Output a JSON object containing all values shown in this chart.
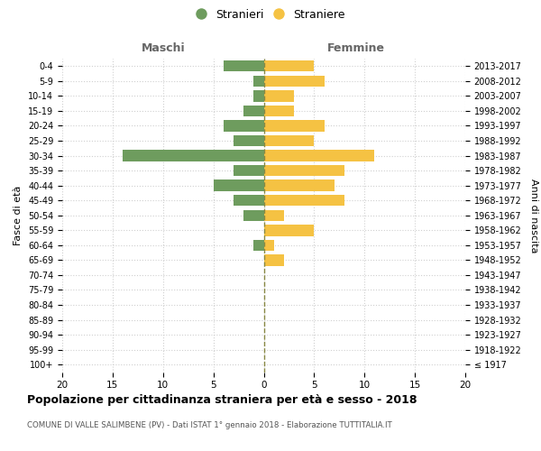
{
  "age_groups": [
    "0-4",
    "5-9",
    "10-14",
    "15-19",
    "20-24",
    "25-29",
    "30-34",
    "35-39",
    "40-44",
    "45-49",
    "50-54",
    "55-59",
    "60-64",
    "65-69",
    "70-74",
    "75-79",
    "80-84",
    "85-89",
    "90-94",
    "95-99",
    "100+"
  ],
  "birth_years": [
    "2013-2017",
    "2008-2012",
    "2003-2007",
    "1998-2002",
    "1993-1997",
    "1988-1992",
    "1983-1987",
    "1978-1982",
    "1973-1977",
    "1968-1972",
    "1963-1967",
    "1958-1962",
    "1953-1957",
    "1948-1952",
    "1943-1947",
    "1938-1942",
    "1933-1937",
    "1928-1932",
    "1923-1927",
    "1918-1922",
    "≤ 1917"
  ],
  "maschi": [
    4,
    1,
    1,
    2,
    4,
    3,
    14,
    3,
    5,
    3,
    2,
    0,
    1,
    0,
    0,
    0,
    0,
    0,
    0,
    0,
    0
  ],
  "femmine": [
    5,
    6,
    3,
    3,
    6,
    5,
    11,
    8,
    7,
    8,
    2,
    5,
    1,
    2,
    0,
    0,
    0,
    0,
    0,
    0,
    0
  ],
  "maschi_color": "#6e9c5e",
  "femmine_color": "#f5c243",
  "title": "Popolazione per cittadinanza straniera per età e sesso - 2018",
  "subtitle": "COMUNE DI VALLE SALIMBENE (PV) - Dati ISTAT 1° gennaio 2018 - Elaborazione TUTTITALIA.IT",
  "ylabel_left": "Fasce di età",
  "ylabel_right": "Anni di nascita",
  "xlabel_left": "Maschi",
  "xlabel_right": "Femmine",
  "legend_maschi": "Stranieri",
  "legend_femmine": "Straniere",
  "xlim": 20,
  "background_color": "#ffffff",
  "grid_color": "#d0d0d0",
  "dashed_line_color": "#888844"
}
